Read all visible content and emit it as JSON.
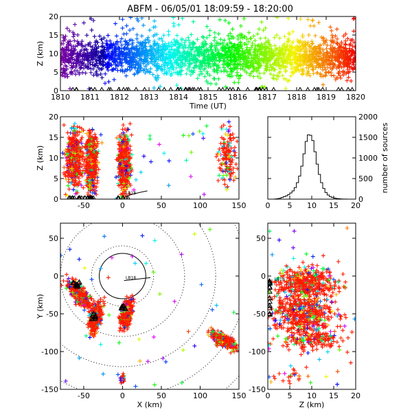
{
  "title": "ABFM - 06/05/01 18:09:59 - 18:20:00",
  "chart_data": [
    {
      "id": "time-height",
      "type": "scatter",
      "xlabel": "Time (UT)",
      "ylabel": "Z (km)",
      "xlim": [
        1810,
        1820
      ],
      "ylim": [
        0,
        20
      ],
      "xticks": [
        "1810",
        "1811",
        "1812",
        "1813",
        "1814",
        "1815",
        "1816",
        "1817",
        "1818",
        "1819",
        "1820"
      ],
      "yticks": [
        "0",
        "5",
        "10",
        "15",
        "20"
      ],
      "markers": "plus, colored by time (purple to red)",
      "sensor_markers": "triangles near Z = 0"
    },
    {
      "id": "x-z",
      "type": "scatter",
      "xlabel": "",
      "ylabel": "Z (km)",
      "xlim": [
        -80,
        150
      ],
      "ylim": [
        0,
        20
      ],
      "xticks": [
        "-50",
        "0",
        "50",
        "100",
        "150"
      ],
      "yticks": [
        "0",
        "5",
        "10",
        "15",
        "20"
      ],
      "annotation": "LB18",
      "clusters": [
        {
          "x_center": -62,
          "z_center": 10,
          "x_spread": 9
        },
        {
          "x_center": -40,
          "z_center": 9,
          "x_spread": 6
        },
        {
          "x_center": 2,
          "z_center": 9,
          "x_spread": 7
        },
        {
          "x_center": 135,
          "z_center": 10,
          "x_spread": 10
        }
      ]
    },
    {
      "id": "height-histogram",
      "type": "line",
      "xlabel": "",
      "ylabel": "number of sources",
      "xlim": [
        0,
        20
      ],
      "ylim": [
        0,
        2000
      ],
      "xticks": [
        "0",
        "5",
        "10",
        "15",
        "20"
      ],
      "yticks": [
        "0",
        "500",
        "1000",
        "1500",
        "2000"
      ],
      "bin_km": 0.5,
      "counts": [
        0,
        0,
        0,
        5,
        10,
        20,
        40,
        60,
        80,
        110,
        150,
        200,
        280,
        400,
        560,
        800,
        1100,
        1400,
        1560,
        1550,
        1420,
        1150,
        850,
        600,
        400,
        260,
        160,
        100,
        60,
        40,
        25,
        15,
        10,
        5,
        3,
        2,
        1,
        0,
        0,
        0
      ]
    },
    {
      "id": "plan-view",
      "type": "scatter",
      "xlabel": "X (km)",
      "ylabel": "Y (km)",
      "xlim": [
        -80,
        150
      ],
      "ylim": [
        -150,
        70
      ],
      "xticks": [
        "-50",
        "0",
        "50",
        "100",
        "150"
      ],
      "yticks": [
        "-150",
        "-100",
        "-50",
        "0",
        "50"
      ],
      "annotation": "LB18",
      "range_rings_km": [
        40,
        80,
        120,
        160,
        200
      ],
      "clusters": [
        {
          "x": -55,
          "y": -25,
          "spread": 12
        },
        {
          "x": -35,
          "y": -55,
          "spread": 10
        },
        {
          "x": 5,
          "y": -50,
          "spread": 10
        },
        {
          "x": 130,
          "y": -85,
          "spread": 10
        },
        {
          "x": 0,
          "y": -135,
          "spread": 4
        }
      ]
    },
    {
      "id": "z-y",
      "type": "scatter",
      "xlabel": "Z (km)",
      "ylabel": "",
      "xlim": [
        0,
        20
      ],
      "ylim": [
        -150,
        70
      ],
      "xticks": [
        "0",
        "5",
        "10",
        "15",
        "20"
      ],
      "yticks": [
        "-150",
        "-100",
        "-50",
        "0",
        "50"
      ],
      "annotation": "LB18"
    }
  ]
}
